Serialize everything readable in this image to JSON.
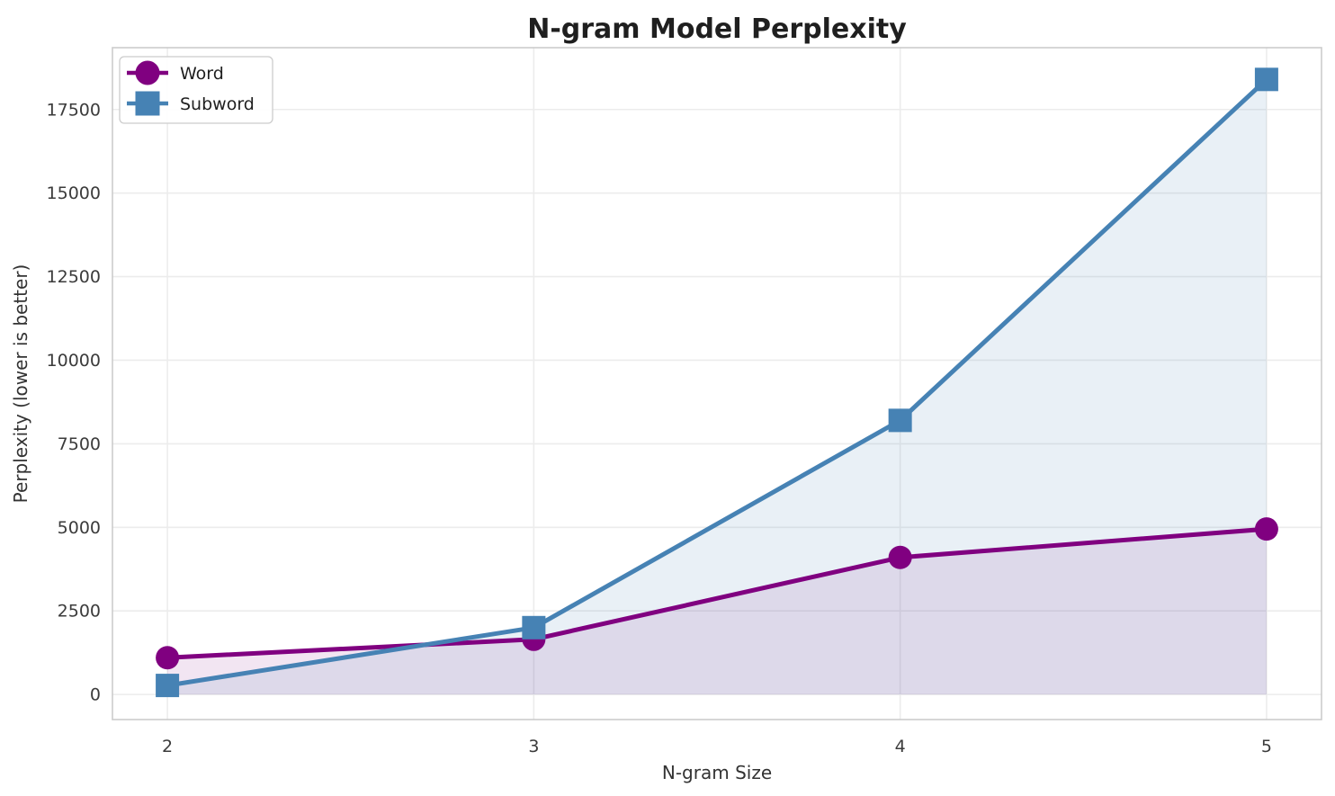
{
  "chart_data": {
    "type": "line",
    "title": "N-gram Model Perplexity",
    "xlabel": "N-gram Size",
    "ylabel": "Perplexity (lower is better)",
    "x": [
      2,
      3,
      4,
      5
    ],
    "series": [
      {
        "name": "Word",
        "marker": "circle",
        "color": "#800080",
        "fill_opacity": 0.1,
        "values": [
          1100,
          1650,
          4100,
          4950
        ]
      },
      {
        "name": "Subword",
        "marker": "square",
        "color": "#4682B4",
        "fill_opacity": 0.12,
        "values": [
          270,
          2000,
          8200,
          18400
        ]
      }
    ],
    "area_fill_to": 0,
    "xticks": [
      2,
      3,
      4,
      5
    ],
    "yticks": [
      0,
      2500,
      5000,
      7500,
      10000,
      12500,
      15000,
      17500
    ],
    "xlim": [
      1.85,
      5.15
    ],
    "ylim": [
      -750,
      19350
    ],
    "grid": true,
    "legend_position": "upper left",
    "colors": {
      "background": "#ffffff",
      "grid": "#ececec",
      "spine": "#cccccc",
      "tick_text": "#3b3b3b",
      "label_text": "#333333",
      "title_text": "#1f1f1f",
      "legend_border": "#cccccc",
      "legend_background": "#ffffff"
    }
  }
}
